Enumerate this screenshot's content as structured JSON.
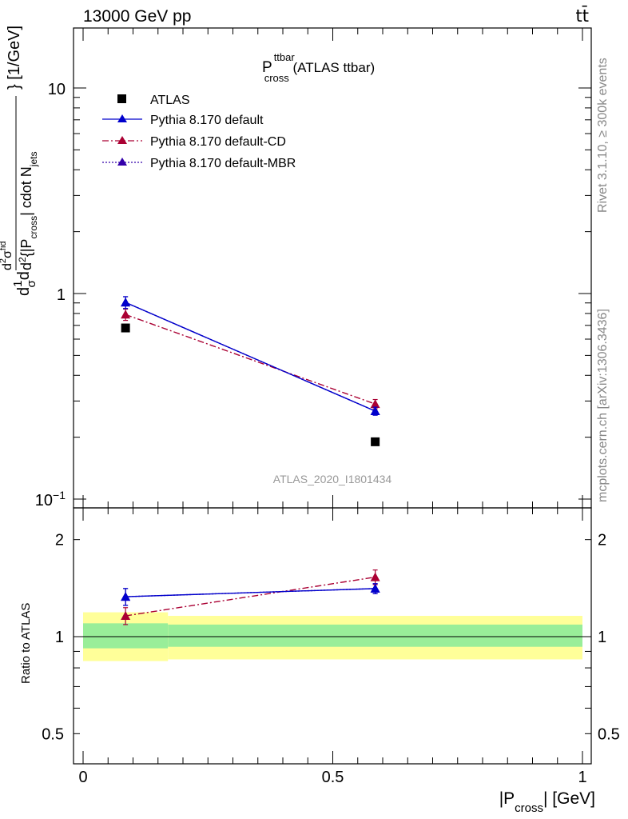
{
  "header": {
    "process": "13000 GeV pp",
    "tag": "tt̄"
  },
  "side": {
    "rivet": "Rivet 3.1.10, ≥ 300k events",
    "mcplots": "mcplots.cern.ch [arXiv:1306.3436]"
  },
  "colors": {
    "atlas": "#000000",
    "default": "#0000cc",
    "cd": "#aa0033",
    "mbr": "#3300aa",
    "band_inner": "#99ee99",
    "band_outer": "#ffff99",
    "watermark": "#999999"
  },
  "chart_data": [
    {
      "type": "scatter",
      "panel": "main",
      "title": "P",
      "title_sup": "ttbar",
      "title_sub": "cross",
      "title_suffix": " (ATLAS ttbar)",
      "watermark": "ATLAS_2020_I1801434",
      "yscale": "log",
      "ylim": [
        0.1,
        20
      ],
      "xlim": [
        0,
        1
      ],
      "ylabel": {
        "frac": "d",
        "sym1": "1",
        "sym2": "d",
        "denom_sigma": "σ",
        "num_sigma": "d",
        "num_sigma_exp": "2",
        "num_sigma_base": "σ",
        "num_sigma_sup": "fid",
        "d2": "d",
        "d2_exp": "2",
        "open": "{|P",
        "cross_sub": "cross",
        "mid": "| cdot N",
        "jets_sub": "jets",
        "close": "} [1/GeV]"
      },
      "yticks": [
        {
          "value": 0.1,
          "base": "10",
          "exp": "−1"
        },
        {
          "value": 1,
          "base": "1",
          "exp": ""
        },
        {
          "value": 10,
          "base": "10",
          "exp": ""
        }
      ],
      "legend": {
        "position": "top-left",
        "entries": [
          {
            "label": "ATLAS",
            "style": "square",
            "color": "#000000"
          },
          {
            "label": "Pythia 8.170 default",
            "style": "solid",
            "color": "#0000cc"
          },
          {
            "label": "Pythia 8.170 default-CD",
            "style": "dashdot",
            "color": "#aa0033"
          },
          {
            "label": "Pythia 8.170 default-MBR",
            "style": "dotted",
            "color": "#3300aa"
          }
        ]
      },
      "series": [
        {
          "name": "ATLAS",
          "marker": "square",
          "color": "#000000",
          "x": [
            0.085,
            0.585
          ],
          "y": [
            0.68,
            0.19
          ],
          "err": [
            0.0,
            0.0
          ]
        },
        {
          "name": "Pythia 8.170 default-MBR",
          "marker": "triangle",
          "color": "#3300aa",
          "line": "dotted",
          "x": [
            0.085,
            0.585
          ],
          "y": [
            0.905,
            0.268
          ],
          "err": [
            0.06,
            0.012
          ]
        },
        {
          "name": "Pythia 8.170 default-CD",
          "marker": "triangle",
          "color": "#aa0033",
          "line": "dashdot",
          "x": [
            0.085,
            0.585
          ],
          "y": [
            0.79,
            0.29
          ],
          "err": [
            0.05,
            0.015
          ]
        },
        {
          "name": "Pythia 8.170 default",
          "marker": "triangle",
          "color": "#0000cc",
          "line": "solid",
          "x": [
            0.085,
            0.585
          ],
          "y": [
            0.905,
            0.268
          ],
          "err": [
            0.06,
            0.012
          ]
        }
      ]
    },
    {
      "type": "scatter",
      "panel": "ratio",
      "ylabel": "Ratio to ATLAS",
      "xlabel_prefix": "|P",
      "xlabel_sub": "cross",
      "xlabel_suffix": "| [GeV]",
      "yscale": "log",
      "ylim": [
        0.4,
        2.5
      ],
      "xlim": [
        0,
        1
      ],
      "xticks": [
        {
          "value": 0,
          "label": "0"
        },
        {
          "value": 0.5,
          "label": "0.5"
        },
        {
          "value": 1,
          "label": "1"
        }
      ],
      "yticks": [
        {
          "value": 0.5,
          "label": "0.5"
        },
        {
          "value": 1,
          "label": "1"
        },
        {
          "value": 2,
          "label": "2"
        }
      ],
      "bands": [
        {
          "x0": 0,
          "x1": 0.17,
          "inner": [
            0.92,
            1.1
          ],
          "outer": [
            0.84,
            1.19
          ]
        },
        {
          "x0": 0.17,
          "x1": 1,
          "inner": [
            0.93,
            1.09
          ],
          "outer": [
            0.85,
            1.16
          ]
        }
      ],
      "series": [
        {
          "name": "Pythia 8.170 default-MBR",
          "marker": "triangle",
          "color": "#3300aa",
          "line": "dotted",
          "x": [
            0.085,
            0.585
          ],
          "y": [
            1.33,
            1.41
          ],
          "err": [
            0.08,
            0.05
          ]
        },
        {
          "name": "Pythia 8.170 default-CD",
          "marker": "triangle",
          "color": "#aa0033",
          "line": "dashdot",
          "x": [
            0.085,
            0.585
          ],
          "y": [
            1.16,
            1.53
          ],
          "err": [
            0.07,
            0.08
          ]
        },
        {
          "name": "Pythia 8.170 default",
          "marker": "triangle",
          "color": "#0000cc",
          "line": "solid",
          "x": [
            0.085,
            0.585
          ],
          "y": [
            1.33,
            1.41
          ],
          "err": [
            0.08,
            0.05
          ]
        }
      ]
    }
  ]
}
